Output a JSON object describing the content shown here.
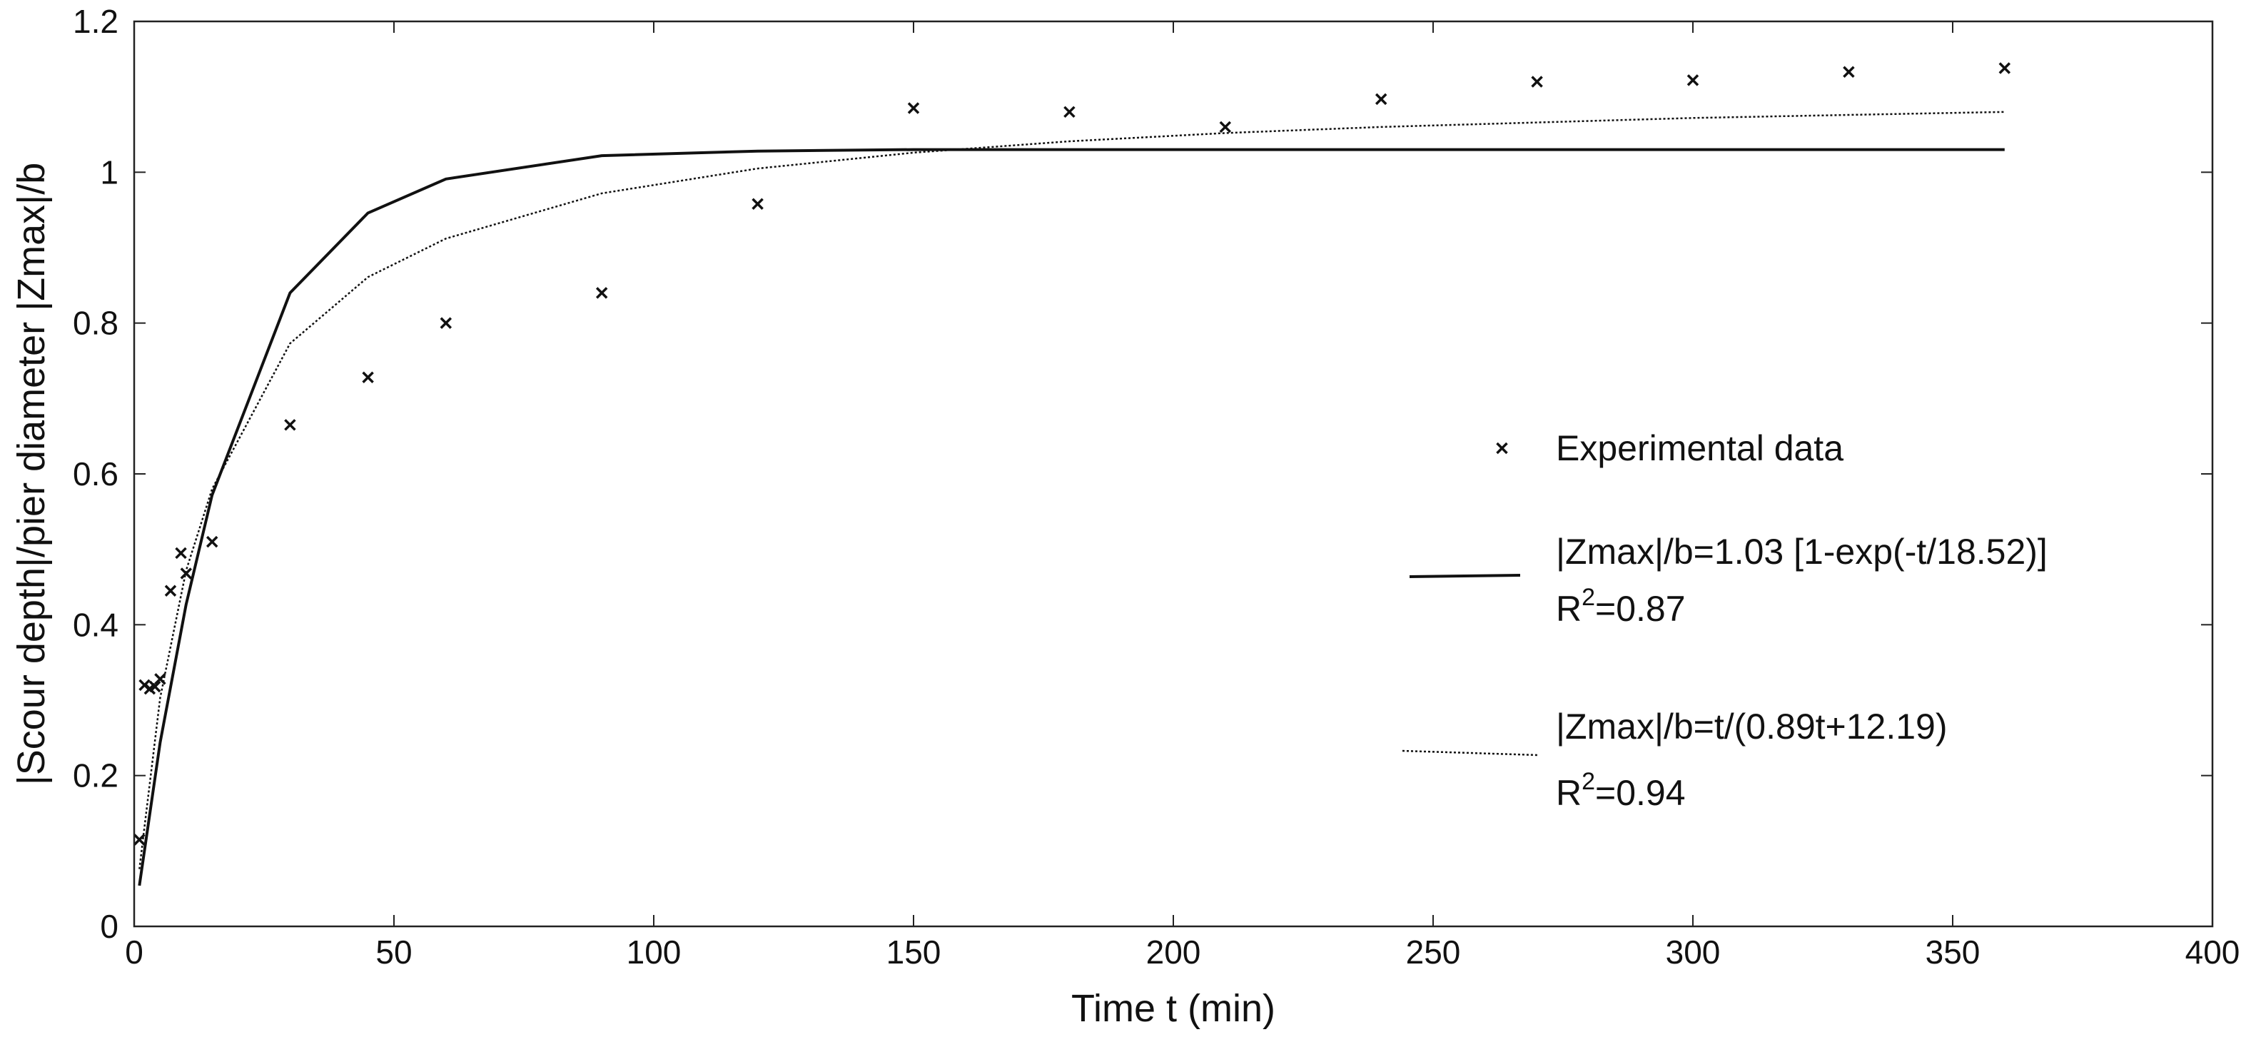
{
  "chart_data": {
    "type": "scatter",
    "title": "",
    "xlabel": "Time t (min)",
    "ylabel": "|Scour depth|/pier diameter |Zmax|/b",
    "xlim": [
      0,
      400
    ],
    "ylim": [
      0,
      1.2
    ],
    "xticks": [
      0,
      50,
      100,
      150,
      200,
      250,
      300,
      350,
      400
    ],
    "yticks": [
      0,
      0.2,
      0.4,
      0.6,
      0.8,
      1,
      1.2
    ],
    "xtick_labels": [
      "0",
      "50",
      "100",
      "150",
      "200",
      "250",
      "300",
      "350",
      "400"
    ],
    "ytick_labels": [
      "0",
      "0.2",
      "0.4",
      "0.6",
      "0.8",
      "1",
      "1.2"
    ],
    "grid": false,
    "legend_position": "right",
    "series": [
      {
        "name": "Experimental data",
        "kind": "scatter",
        "marker": "x",
        "x": [
          1,
          2,
          3,
          4,
          5,
          7,
          9,
          10,
          15,
          30,
          45,
          60,
          90,
          120,
          150,
          180,
          210,
          240,
          270,
          300,
          330,
          360
        ],
        "y": [
          0.115,
          0.32,
          0.315,
          0.318,
          0.328,
          0.445,
          0.495,
          0.468,
          0.51,
          0.665,
          0.728,
          0.8,
          0.84,
          0.958,
          1.085,
          1.08,
          1.06,
          1.097,
          1.12,
          1.122,
          1.133,
          1.138
        ]
      },
      {
        "name": "|Zmax|/b=1.03 [1-exp(-t/18.52)]",
        "r2_base": "R",
        "r2_sup": "2",
        "r2_value": "=0.87",
        "kind": "line",
        "style": "solid",
        "x": [
          1,
          5,
          10,
          15,
          30,
          45,
          60,
          90,
          120,
          150,
          180,
          210,
          240,
          270,
          300,
          330,
          360
        ],
        "y": [
          0.054,
          0.244,
          0.427,
          0.572,
          0.84,
          0.946,
          0.991,
          1.022,
          1.028,
          1.03,
          1.03,
          1.03,
          1.03,
          1.03,
          1.03,
          1.03,
          1.03
        ]
      },
      {
        "name": "|Zmax|/b=t/(0.89t+12.19)",
        "r2_base": "R",
        "r2_sup": "2",
        "r2_value": "=0.94",
        "kind": "line",
        "style": "dotted",
        "x": [
          1,
          5,
          10,
          15,
          30,
          45,
          60,
          90,
          120,
          150,
          180,
          210,
          240,
          270,
          300,
          330,
          360
        ],
        "y": [
          0.076,
          0.303,
          0.472,
          0.58,
          0.773,
          0.861,
          0.912,
          0.972,
          1.005,
          1.026,
          1.041,
          1.052,
          1.06,
          1.066,
          1.072,
          1.076,
          1.08
        ]
      }
    ]
  }
}
